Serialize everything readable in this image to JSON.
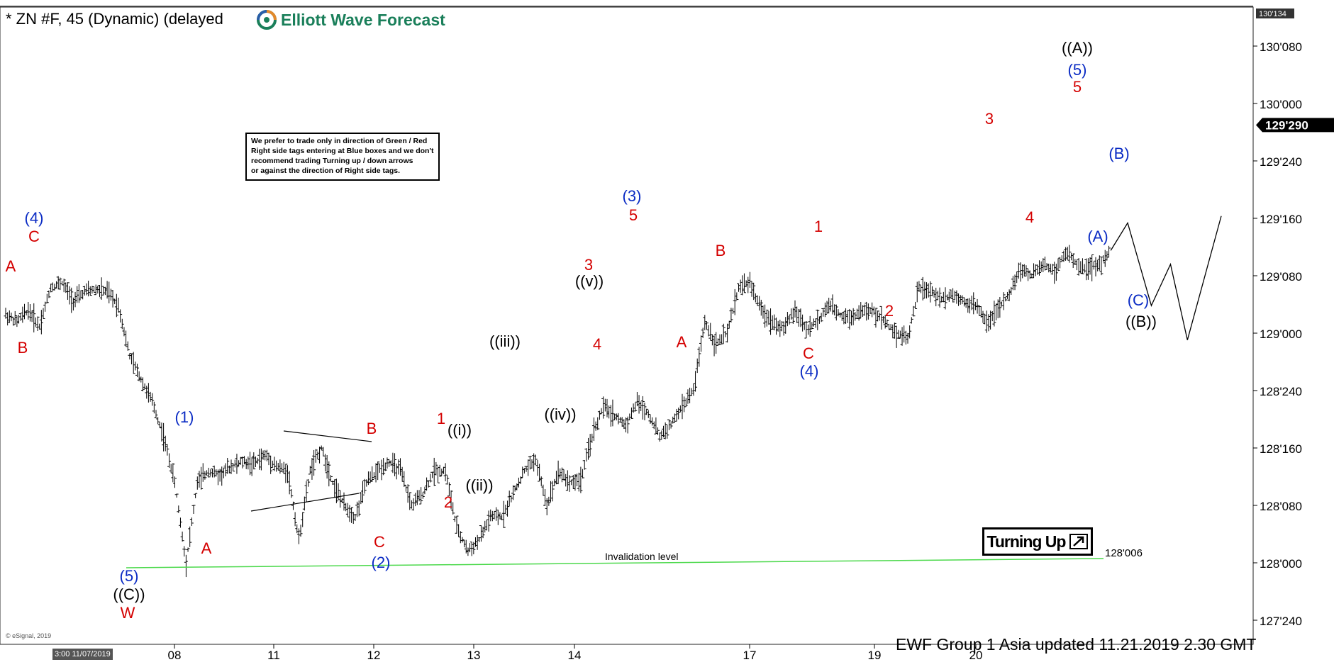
{
  "header": {
    "title": "* ZN #F, 45 (Dynamic) (delayed",
    "logo_text": "Elliott Wave Forecast",
    "logo_icon": "ewf-circle-logo"
  },
  "note": {
    "lines": [
      "We prefer to trade only in direction of Green / Red",
      "Right side tags entering at Blue boxes and we don't",
      "recommend trading Turning up / down arrows",
      "or against the direction of Right side tags."
    ]
  },
  "turning": {
    "label": "Turning Up",
    "icon": "arrow-up-right-icon"
  },
  "footer": {
    "text": "EWF Group  1 Asia  updated 11.21.2019 2.30 GMT",
    "esignal": "© eSignal, 2019",
    "date_tag": "3:00 11/07/2019"
  },
  "colors": {
    "red": "#d40000",
    "blue": "#0a2bc4",
    "black": "#000000",
    "invalidation": "#4cd94c",
    "last_price_bg": "#000000"
  },
  "chart_data": {
    "type": "ohlc",
    "title": "* ZN #F, 45 (Dynamic) (delayed",
    "y_axis": {
      "ticks": [
        "127'240",
        "128'000",
        "128'080",
        "128'160",
        "128'240",
        "129'000",
        "129'080",
        "129'160",
        "129'240",
        "130'000",
        "130'080"
      ],
      "top_label": "130'134",
      "last_price": "129'290"
    },
    "x_axis": {
      "ticks": [
        "08",
        "11",
        "12",
        "13",
        "14",
        "17",
        "19",
        "20"
      ]
    },
    "price_path": [
      [
        0,
        129.08
      ],
      [
        1,
        129.05
      ],
      [
        2,
        129.1
      ],
      [
        3,
        129.03
      ],
      [
        4,
        129.2
      ],
      [
        5,
        129.22
      ],
      [
        6,
        129.14
      ],
      [
        7,
        129.18
      ],
      [
        8,
        129.19
      ],
      [
        9,
        129.18
      ],
      [
        10,
        129.12
      ],
      [
        11,
        128.9
      ],
      [
        12,
        128.8
      ],
      [
        13,
        128.7
      ],
      [
        14,
        128.55
      ],
      [
        15,
        128.35
      ],
      [
        16,
        128.0
      ],
      [
        17,
        128.35
      ],
      [
        18,
        128.4
      ],
      [
        19,
        128.38
      ],
      [
        20,
        128.42
      ],
      [
        21,
        128.44
      ],
      [
        22,
        128.43
      ],
      [
        23,
        128.47
      ],
      [
        24,
        128.42
      ],
      [
        25,
        128.4
      ],
      [
        26,
        128.1
      ],
      [
        27,
        128.4
      ],
      [
        28,
        128.5
      ],
      [
        29,
        128.35
      ],
      [
        30,
        128.25
      ],
      [
        31,
        128.2
      ],
      [
        32,
        128.35
      ],
      [
        33,
        128.4
      ],
      [
        34,
        128.44
      ],
      [
        35,
        128.4
      ],
      [
        36,
        128.25
      ],
      [
        37,
        128.3
      ],
      [
        38,
        128.4
      ],
      [
        39,
        128.4
      ],
      [
        40,
        128.15
      ],
      [
        41,
        128.05
      ],
      [
        42,
        128.1
      ],
      [
        43,
        128.2
      ],
      [
        44,
        128.2
      ],
      [
        45,
        128.3
      ],
      [
        46,
        128.4
      ],
      [
        47,
        128.45
      ],
      [
        48,
        128.25
      ],
      [
        49,
        128.4
      ],
      [
        50,
        128.35
      ],
      [
        51,
        128.36
      ],
      [
        52,
        128.55
      ],
      [
        53,
        128.68
      ],
      [
        54,
        128.64
      ],
      [
        55,
        128.6
      ],
      [
        56,
        128.7
      ],
      [
        57,
        128.65
      ],
      [
        58,
        128.55
      ],
      [
        59,
        128.6
      ],
      [
        60,
        128.68
      ],
      [
        61,
        128.75
      ],
      [
        62,
        129.05
      ],
      [
        63,
        128.95
      ],
      [
        64,
        129.0
      ],
      [
        65,
        129.2
      ],
      [
        66,
        129.22
      ],
      [
        67,
        129.1
      ],
      [
        68,
        129.05
      ],
      [
        69,
        129.02
      ],
      [
        70,
        129.1
      ],
      [
        71,
        129.02
      ],
      [
        72,
        129.05
      ],
      [
        73,
        129.12
      ],
      [
        74,
        129.08
      ],
      [
        75,
        129.07
      ],
      [
        76,
        129.1
      ],
      [
        77,
        129.09
      ],
      [
        78,
        129.05
      ],
      [
        79,
        129.0
      ],
      [
        80,
        128.98
      ],
      [
        81,
        129.2
      ],
      [
        82,
        129.18
      ],
      [
        83,
        129.15
      ],
      [
        84,
        129.17
      ],
      [
        85,
        129.14
      ],
      [
        86,
        129.12
      ],
      [
        87,
        129.05
      ],
      [
        88,
        129.1
      ],
      [
        89,
        129.17
      ],
      [
        90,
        129.28
      ],
      [
        91,
        129.25
      ],
      [
        92,
        129.3
      ],
      [
        93,
        129.27
      ],
      [
        94,
        129.35
      ],
      [
        95,
        129.3
      ],
      [
        96,
        129.28
      ],
      [
        97,
        129.3
      ],
      [
        98,
        129.36
      ]
    ],
    "projection_path": [
      [
        98,
        129.36
      ],
      [
        99.5,
        129.48
      ],
      [
        101.6,
        129.12
      ],
      [
        103.3,
        129.3
      ],
      [
        104.8,
        128.97
      ],
      [
        107.8,
        129.51
      ]
    ],
    "invalidation": {
      "label": "Invalidation level",
      "value": "128'006"
    },
    "labels": [
      {
        "text": "A",
        "color": "red"
      },
      {
        "text": "B",
        "color": "red"
      },
      {
        "text": "(4)",
        "color": "blue"
      },
      {
        "text": "C",
        "color": "red"
      },
      {
        "text": "(5)",
        "color": "blue"
      },
      {
        "text": "((C))",
        "color": "black"
      },
      {
        "text": "W",
        "color": "red"
      },
      {
        "text": "(1)",
        "color": "blue"
      },
      {
        "text": "A",
        "color": "red"
      },
      {
        "text": "B",
        "color": "red"
      },
      {
        "text": "C",
        "color": "red"
      },
      {
        "text": "(2)",
        "color": "blue"
      },
      {
        "text": "1",
        "color": "red"
      },
      {
        "text": "((i))",
        "color": "black"
      },
      {
        "text": "2",
        "color": "red"
      },
      {
        "text": "((ii))",
        "color": "black"
      },
      {
        "text": "((iii))",
        "color": "black"
      },
      {
        "text": "((iv))",
        "color": "black"
      },
      {
        "text": "3",
        "color": "red"
      },
      {
        "text": "((v))",
        "color": "black"
      },
      {
        "text": "4",
        "color": "red"
      },
      {
        "text": "(3)",
        "color": "blue"
      },
      {
        "text": "5",
        "color": "red"
      },
      {
        "text": "A",
        "color": "red"
      },
      {
        "text": "B",
        "color": "red"
      },
      {
        "text": "C",
        "color": "red"
      },
      {
        "text": "(4)",
        "color": "blue"
      },
      {
        "text": "1",
        "color": "red"
      },
      {
        "text": "2",
        "color": "red"
      },
      {
        "text": "3",
        "color": "red"
      },
      {
        "text": "4",
        "color": "red"
      },
      {
        "text": "((A))",
        "color": "black"
      },
      {
        "text": "(5)",
        "color": "blue"
      },
      {
        "text": "5",
        "color": "red"
      },
      {
        "text": "(B)",
        "color": "blue"
      },
      {
        "text": "(A)",
        "color": "blue"
      },
      {
        "text": "(C)",
        "color": "blue"
      },
      {
        "text": "((B))",
        "color": "black"
      }
    ]
  }
}
